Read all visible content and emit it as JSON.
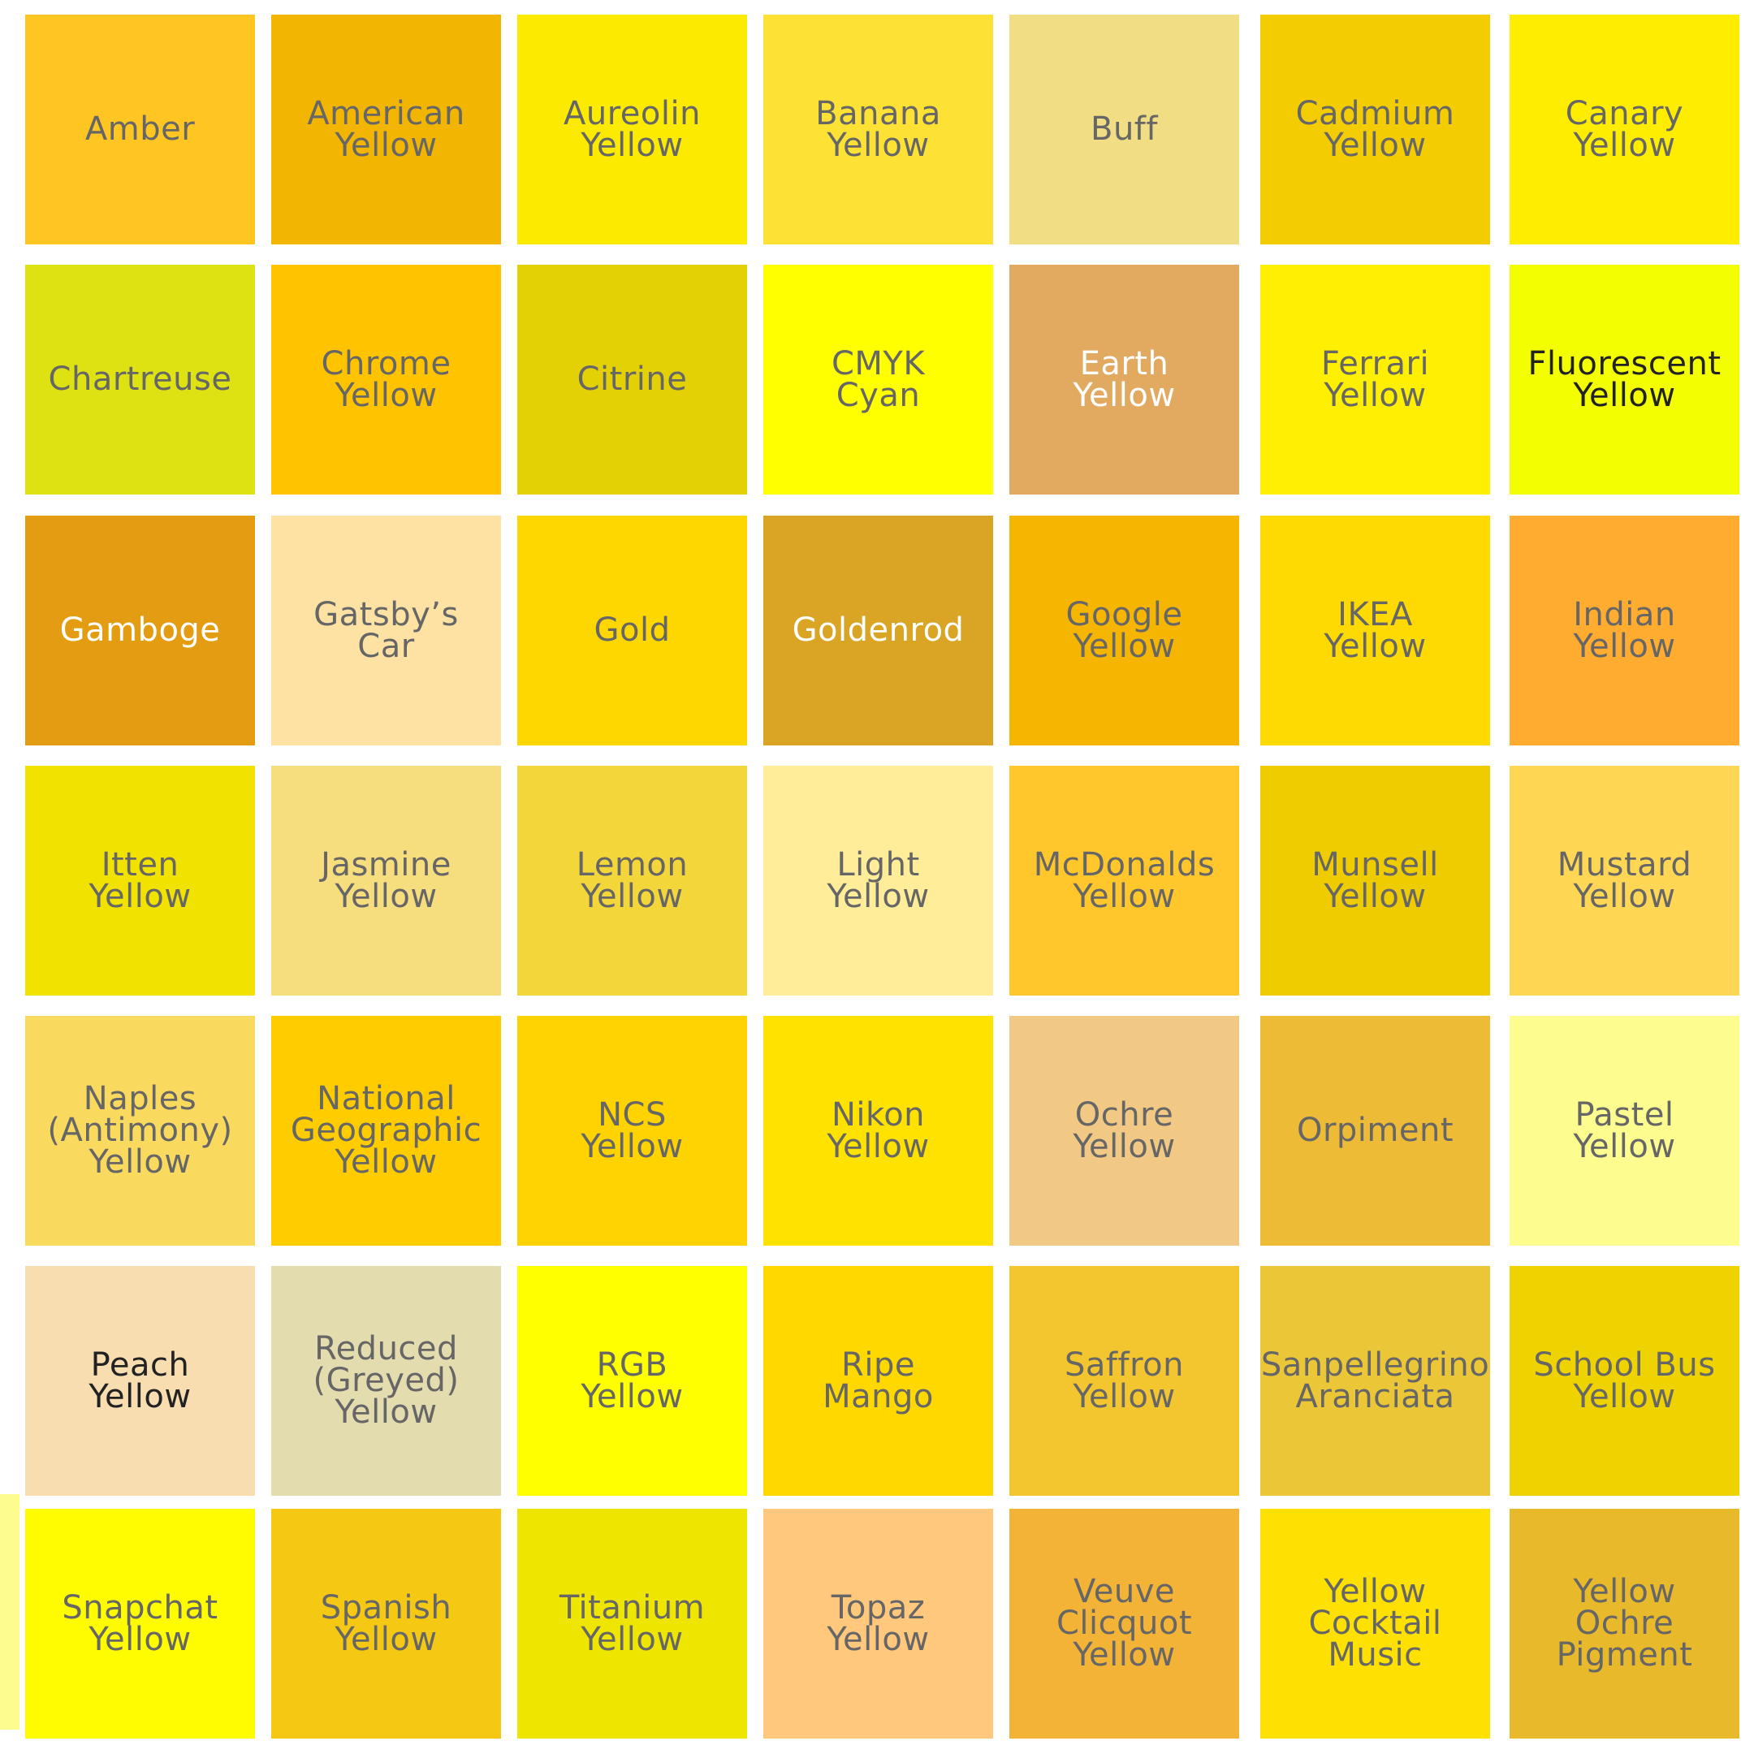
{
  "swatches": [
    {
      "name": "Amber",
      "color": "#FFC522",
      "text_color": "#666666"
    },
    {
      "name": "American\nYellow",
      "color": "#F1B502",
      "text_color": "#666666"
    },
    {
      "name": "Aureolin\nYellow",
      "color": "#FCEB00",
      "text_color": "#666666"
    },
    {
      "name": "Banana\nYellow",
      "color": "#FDE235",
      "text_color": "#666666"
    },
    {
      "name": "Buff",
      "color": "#F0DD84",
      "text_color": "#666666"
    },
    {
      "name": "Cadmium\nYellow",
      "color": "#F3CC02",
      "text_color": "#666666"
    },
    {
      "name": "Canary\nYellow",
      "color": "#FFED00",
      "text_color": "#666666"
    },
    {
      "name": "Chartreuse",
      "color": "#DEE213",
      "text_color": "#666666"
    },
    {
      "name": "Chrome\nYellow",
      "color": "#FFC300",
      "text_color": "#666666"
    },
    {
      "name": "Citrine",
      "color": "#E3D106",
      "text_color": "#666666"
    },
    {
      "name": "CMYK\nCyan",
      "color": "#FFFF00",
      "text_color": "#666666"
    },
    {
      "name": "Earth\nYellow",
      "color": "#E2A961",
      "text_color": "#FFFFFF"
    },
    {
      "name": "Ferrari\nYellow",
      "color": "#FFEF00",
      "text_color": "#666666"
    },
    {
      "name": "Fluorescent\nYellow",
      "color": "#F3FF00",
      "text_color": "#222222"
    },
    {
      "name": "Gamboge",
      "color": "#E49D13",
      "text_color": "#FFFFFF"
    },
    {
      "name": "Gatsby’s\nCar",
      "color": "#FEE2A4",
      "text_color": "#666666"
    },
    {
      "name": "Gold",
      "color": "#FFD700",
      "text_color": "#666666"
    },
    {
      "name": "Goldenrod",
      "color": "#DAA524",
      "text_color": "#FFFFFF"
    },
    {
      "name": "Google\nYellow",
      "color": "#F5B500",
      "text_color": "#666666"
    },
    {
      "name": "IKEA\nYellow",
      "color": "#FFDA02",
      "text_color": "#666666"
    },
    {
      "name": "Indian\nYellow",
      "color": "#FFAC31",
      "text_color": "#666666"
    },
    {
      "name": "Itten\nYellow",
      "color": "#F2E200",
      "text_color": "#666666"
    },
    {
      "name": "Jasmine\nYellow",
      "color": "#F6DD7E",
      "text_color": "#666666"
    },
    {
      "name": "Lemon\nYellow",
      "color": "#F3D73A",
      "text_color": "#666666"
    },
    {
      "name": "Light\nYellow",
      "color": "#FFED99",
      "text_color": "#666666"
    },
    {
      "name": "McDonalds\nYellow",
      "color": "#FFC72B",
      "text_color": "#666666"
    },
    {
      "name": "Munsell\nYellow",
      "color": "#EFCC00",
      "text_color": "#666666"
    },
    {
      "name": "Mustard\nYellow",
      "color": "#FFD754",
      "text_color": "#666666"
    },
    {
      "name": "Naples\n(Antimony)\nYellow",
      "color": "#FADA5E",
      "text_color": "#666666"
    },
    {
      "name": "National\nGeographic\nYellow",
      "color": "#FFCC00",
      "text_color": "#666666"
    },
    {
      "name": "NCS\nYellow",
      "color": "#FFD300",
      "text_color": "#666666"
    },
    {
      "name": "Nikon\nYellow",
      "color": "#FFE200",
      "text_color": "#666666"
    },
    {
      "name": "Ochre\nYellow",
      "color": "#F2C984",
      "text_color": "#666666"
    },
    {
      "name": "Orpiment",
      "color": "#EDBB36",
      "text_color": "#666666"
    },
    {
      "name": "Pastel\nYellow",
      "color": "#FCFD8E",
      "text_color": "#666666"
    },
    {
      "name": "Peach\nYellow",
      "color": "#F7DDAF",
      "text_color": "#222222"
    },
    {
      "name": "Reduced\n(Greyed)\nYellow",
      "color": "#E3DCAE",
      "text_color": "#666666"
    },
    {
      "name": "RGB\nYellow",
      "color": "#FFFF00",
      "text_color": "#666666"
    },
    {
      "name": "Ripe\nMango",
      "color": "#FFD800",
      "text_color": "#666666"
    },
    {
      "name": "Saffron\nYellow",
      "color": "#F3C62F",
      "text_color": "#666666"
    },
    {
      "name": "Sanpellegrino\nAranciata",
      "color": "#EBC737",
      "text_color": "#666666"
    },
    {
      "name": "School Bus\nYellow",
      "color": "#EFD300",
      "text_color": "#666666"
    },
    {
      "name": "Snapchat\nYellow",
      "color": "#FFFC00",
      "text_color": "#666666"
    },
    {
      "name": "Spanish\nYellow",
      "color": "#F5C913",
      "text_color": "#666666"
    },
    {
      "name": "Titanium\nYellow",
      "color": "#EEE500",
      "text_color": "#666666"
    },
    {
      "name": "Topaz\nYellow",
      "color": "#FFC87C",
      "text_color": "#666666"
    },
    {
      "name": "Veuve\nClicquot\nYellow",
      "color": "#F2B337",
      "text_color": "#666666"
    },
    {
      "name": "Yellow\nCocktail\nMusic",
      "color": "#FEE102",
      "text_color": "#666666"
    },
    {
      "name": "Yellow\nOchre\nPigment",
      "color": "#E8B92A",
      "text_color": "#666666"
    }
  ],
  "edge_strip_color": "#FCFD8E"
}
